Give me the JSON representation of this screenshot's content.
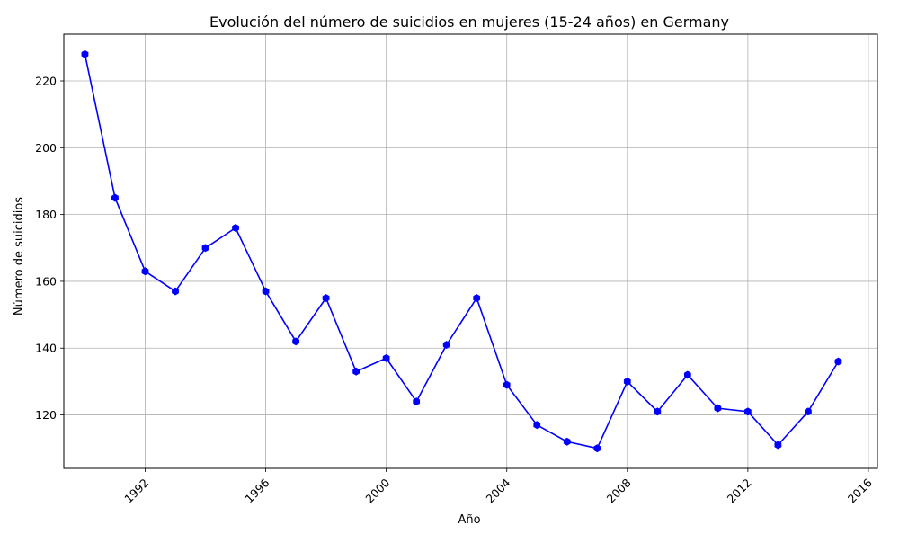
{
  "chart_data": {
    "type": "line",
    "title": "Evolución del número de suicidios en mujeres (15-24 años) en Germany",
    "xlabel": "Año",
    "ylabel": "Número de suicidios",
    "x_ticks": [
      "1992",
      "1996",
      "2000",
      "2004",
      "2008",
      "2012",
      "2016"
    ],
    "y_ticks": [
      "120",
      "140",
      "160",
      "180",
      "200",
      "220"
    ],
    "xlim": [
      1989.3,
      2016.3
    ],
    "ylim": [
      104,
      234
    ],
    "grid": true,
    "x_tick_rotation": 45,
    "series": [
      {
        "color": "#0000ff",
        "marker": "hexagon",
        "x": [
          1990,
          1991,
          1992,
          1993,
          1994,
          1995,
          1996,
          1997,
          1998,
          1999,
          2000,
          2001,
          2002,
          2003,
          2004,
          2005,
          2006,
          2007,
          2008,
          2009,
          2010,
          2011,
          2012,
          2013,
          2014,
          2015
        ],
        "values": [
          228,
          185,
          163,
          157,
          170,
          176,
          157,
          142,
          155,
          133,
          137,
          124,
          141,
          155,
          129,
          117,
          112,
          110,
          130,
          121,
          132,
          122,
          121,
          111,
          121,
          136
        ]
      }
    ]
  }
}
